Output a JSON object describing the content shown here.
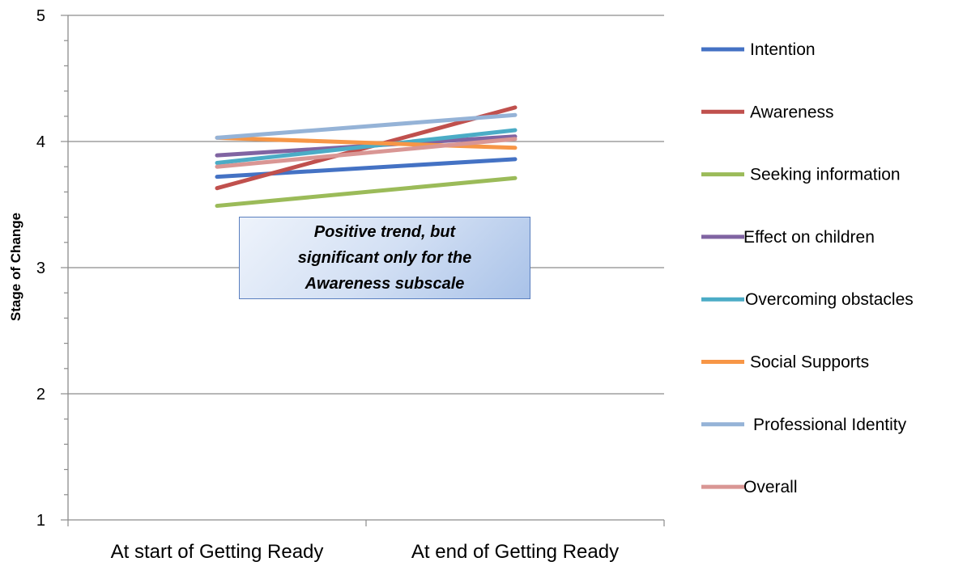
{
  "chart_data": {
    "type": "line",
    "title": "",
    "xlabel": "",
    "ylabel": "Stage of Change",
    "ylim": [
      1,
      5
    ],
    "yticks": [
      1,
      2,
      3,
      4,
      5
    ],
    "grid": true,
    "legend_position": "right",
    "categories": [
      "At start of Getting Ready",
      "At end of Getting Ready"
    ],
    "series": [
      {
        "name": "Intention",
        "color": "#4472c4",
        "values": [
          3.72,
          3.86
        ]
      },
      {
        "name": "Awareness",
        "color": "#c0504d",
        "values": [
          3.63,
          4.27
        ]
      },
      {
        "name": "Seeking information",
        "color": "#9bbb59",
        "values": [
          3.49,
          3.71
        ]
      },
      {
        "name": "Effect on children",
        "color": "#8064a2",
        "values": [
          3.89,
          4.04
        ]
      },
      {
        "name": "Overcoming obstacles",
        "color": "#4bacc6",
        "values": [
          3.83,
          4.09
        ]
      },
      {
        "name": "Social Supports",
        "color": "#f79646",
        "values": [
          4.03,
          3.95
        ]
      },
      {
        "name": "Professional Identity",
        "color": "#95b3d7",
        "values": [
          4.03,
          4.21
        ]
      },
      {
        "name": "Overall",
        "color": "#d99694",
        "values": [
          3.8,
          4.02
        ]
      }
    ],
    "annotation": {
      "lines": [
        "Positive trend, but",
        "significant only for the",
        "Awareness subscale"
      ]
    }
  }
}
